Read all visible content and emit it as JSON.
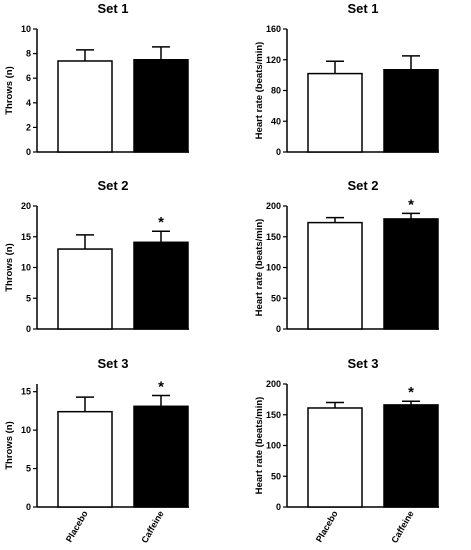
{
  "figure": {
    "series_colors": {
      "Placebo": "#ffffff",
      "Caffeine": "#000000"
    },
    "bar_stroke": "#000000"
  },
  "chart_data": [
    {
      "id": "throws-set1",
      "type": "bar",
      "title": "Set 1",
      "ylabel": "Throws (n)",
      "categories": [
        "Placebo",
        "Caffeine"
      ],
      "values": [
        7.4,
        7.5
      ],
      "errors": [
        0.9,
        1.05
      ],
      "ylim": [
        0,
        10
      ],
      "yticks": [
        0,
        2,
        4,
        6,
        8,
        10
      ],
      "significant": [
        false,
        false
      ],
      "show_xlabels": false
    },
    {
      "id": "hr-set1",
      "type": "bar",
      "title": "Set 1",
      "ylabel": "Heart rate (beats/min)",
      "categories": [
        "Placebo",
        "Caffeine"
      ],
      "values": [
        102,
        107
      ],
      "errors": [
        16,
        18
      ],
      "ylim": [
        0,
        160
      ],
      "yticks": [
        0,
        40,
        80,
        120,
        160
      ],
      "significant": [
        false,
        false
      ],
      "show_xlabels": false
    },
    {
      "id": "throws-set2",
      "type": "bar",
      "title": "Set 2",
      "ylabel": "Throws (n)",
      "categories": [
        "Placebo",
        "Caffeine"
      ],
      "values": [
        13.0,
        14.1
      ],
      "errors": [
        2.3,
        1.8
      ],
      "ylim": [
        0,
        20
      ],
      "yticks": [
        0,
        5,
        10,
        15,
        20
      ],
      "significant": [
        false,
        true
      ],
      "show_xlabels": false
    },
    {
      "id": "hr-set2",
      "type": "bar",
      "title": "Set 2",
      "ylabel": "Heart rate (beats/min)",
      "categories": [
        "Placebo",
        "Caffeine"
      ],
      "values": [
        173,
        179
      ],
      "errors": [
        8,
        9
      ],
      "ylim": [
        0,
        200
      ],
      "yticks": [
        0,
        50,
        100,
        150,
        200
      ],
      "significant": [
        false,
        true
      ],
      "show_xlabels": false
    },
    {
      "id": "throws-set3",
      "type": "bar",
      "title": "Set 3",
      "ylabel": "Throws (n)",
      "categories": [
        "Placebo",
        "Caffeine"
      ],
      "values": [
        12.4,
        13.1
      ],
      "errors": [
        1.9,
        1.4
      ],
      "ylim": [
        0,
        16
      ],
      "yticks": [
        0,
        5,
        10,
        15
      ],
      "significant": [
        false,
        true
      ],
      "show_xlabels": true
    },
    {
      "id": "hr-set3",
      "type": "bar",
      "title": "Set 3",
      "ylabel": "Heart rate (beats/min)",
      "categories": [
        "Placebo",
        "Caffeine"
      ],
      "values": [
        161,
        166
      ],
      "errors": [
        9,
        6
      ],
      "ylim": [
        0,
        200
      ],
      "yticks": [
        0,
        50,
        100,
        150,
        200
      ],
      "significant": [
        false,
        true
      ],
      "show_xlabels": true
    }
  ]
}
